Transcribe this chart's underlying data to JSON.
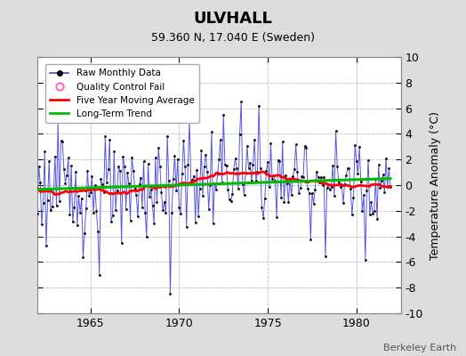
{
  "title": "ULVHALL",
  "subtitle": "59.360 N, 17.040 E (Sweden)",
  "ylabel": "Temperature Anomaly (°C)",
  "credit": "Berkeley Earth",
  "xlim": [
    1962.0,
    1982.5
  ],
  "ylim": [
    -10,
    10
  ],
  "yticks": [
    -10,
    -8,
    -6,
    -4,
    -2,
    0,
    2,
    4,
    6,
    8,
    10
  ],
  "xticks": [
    1965,
    1970,
    1975,
    1980
  ],
  "raw_color": "#4444dd",
  "ma_color": "#ff0000",
  "trend_color": "#00bb00",
  "dot_color": "#000000",
  "bg_color": "#dddddd",
  "plot_bg": "#ffffff",
  "grid_color": "#bbbbbb",
  "figsize": [
    5.24,
    4.0
  ],
  "dpi": 100
}
